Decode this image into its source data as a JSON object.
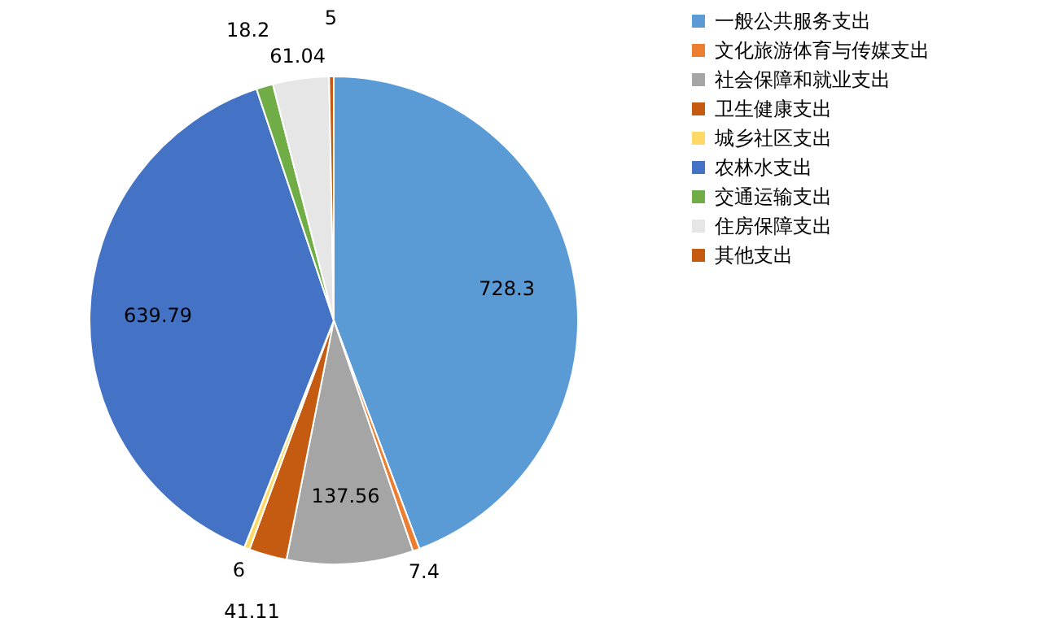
{
  "chart_data": {
    "type": "pie",
    "categories": [
      "一般公共服务支出",
      "文化旅游体育与传媒支出",
      "社会保障和就业支出",
      "卫生健康支出",
      "城乡社区支出",
      "农林水支出",
      "交通运输支出",
      "住房保障支出",
      "其他支出"
    ],
    "values": [
      728.3,
      7.4,
      137.56,
      41.11,
      6,
      639.79,
      18.2,
      61.04,
      5
    ],
    "colors": [
      "#5b9bd5",
      "#ed7d31",
      "#a5a5a5",
      "#c55a11",
      "#ffd966",
      "#4472c4",
      "#70ad47",
      "#e7e6e6",
      "#c55a11"
    ],
    "data_labels": true,
    "legend": "right"
  }
}
